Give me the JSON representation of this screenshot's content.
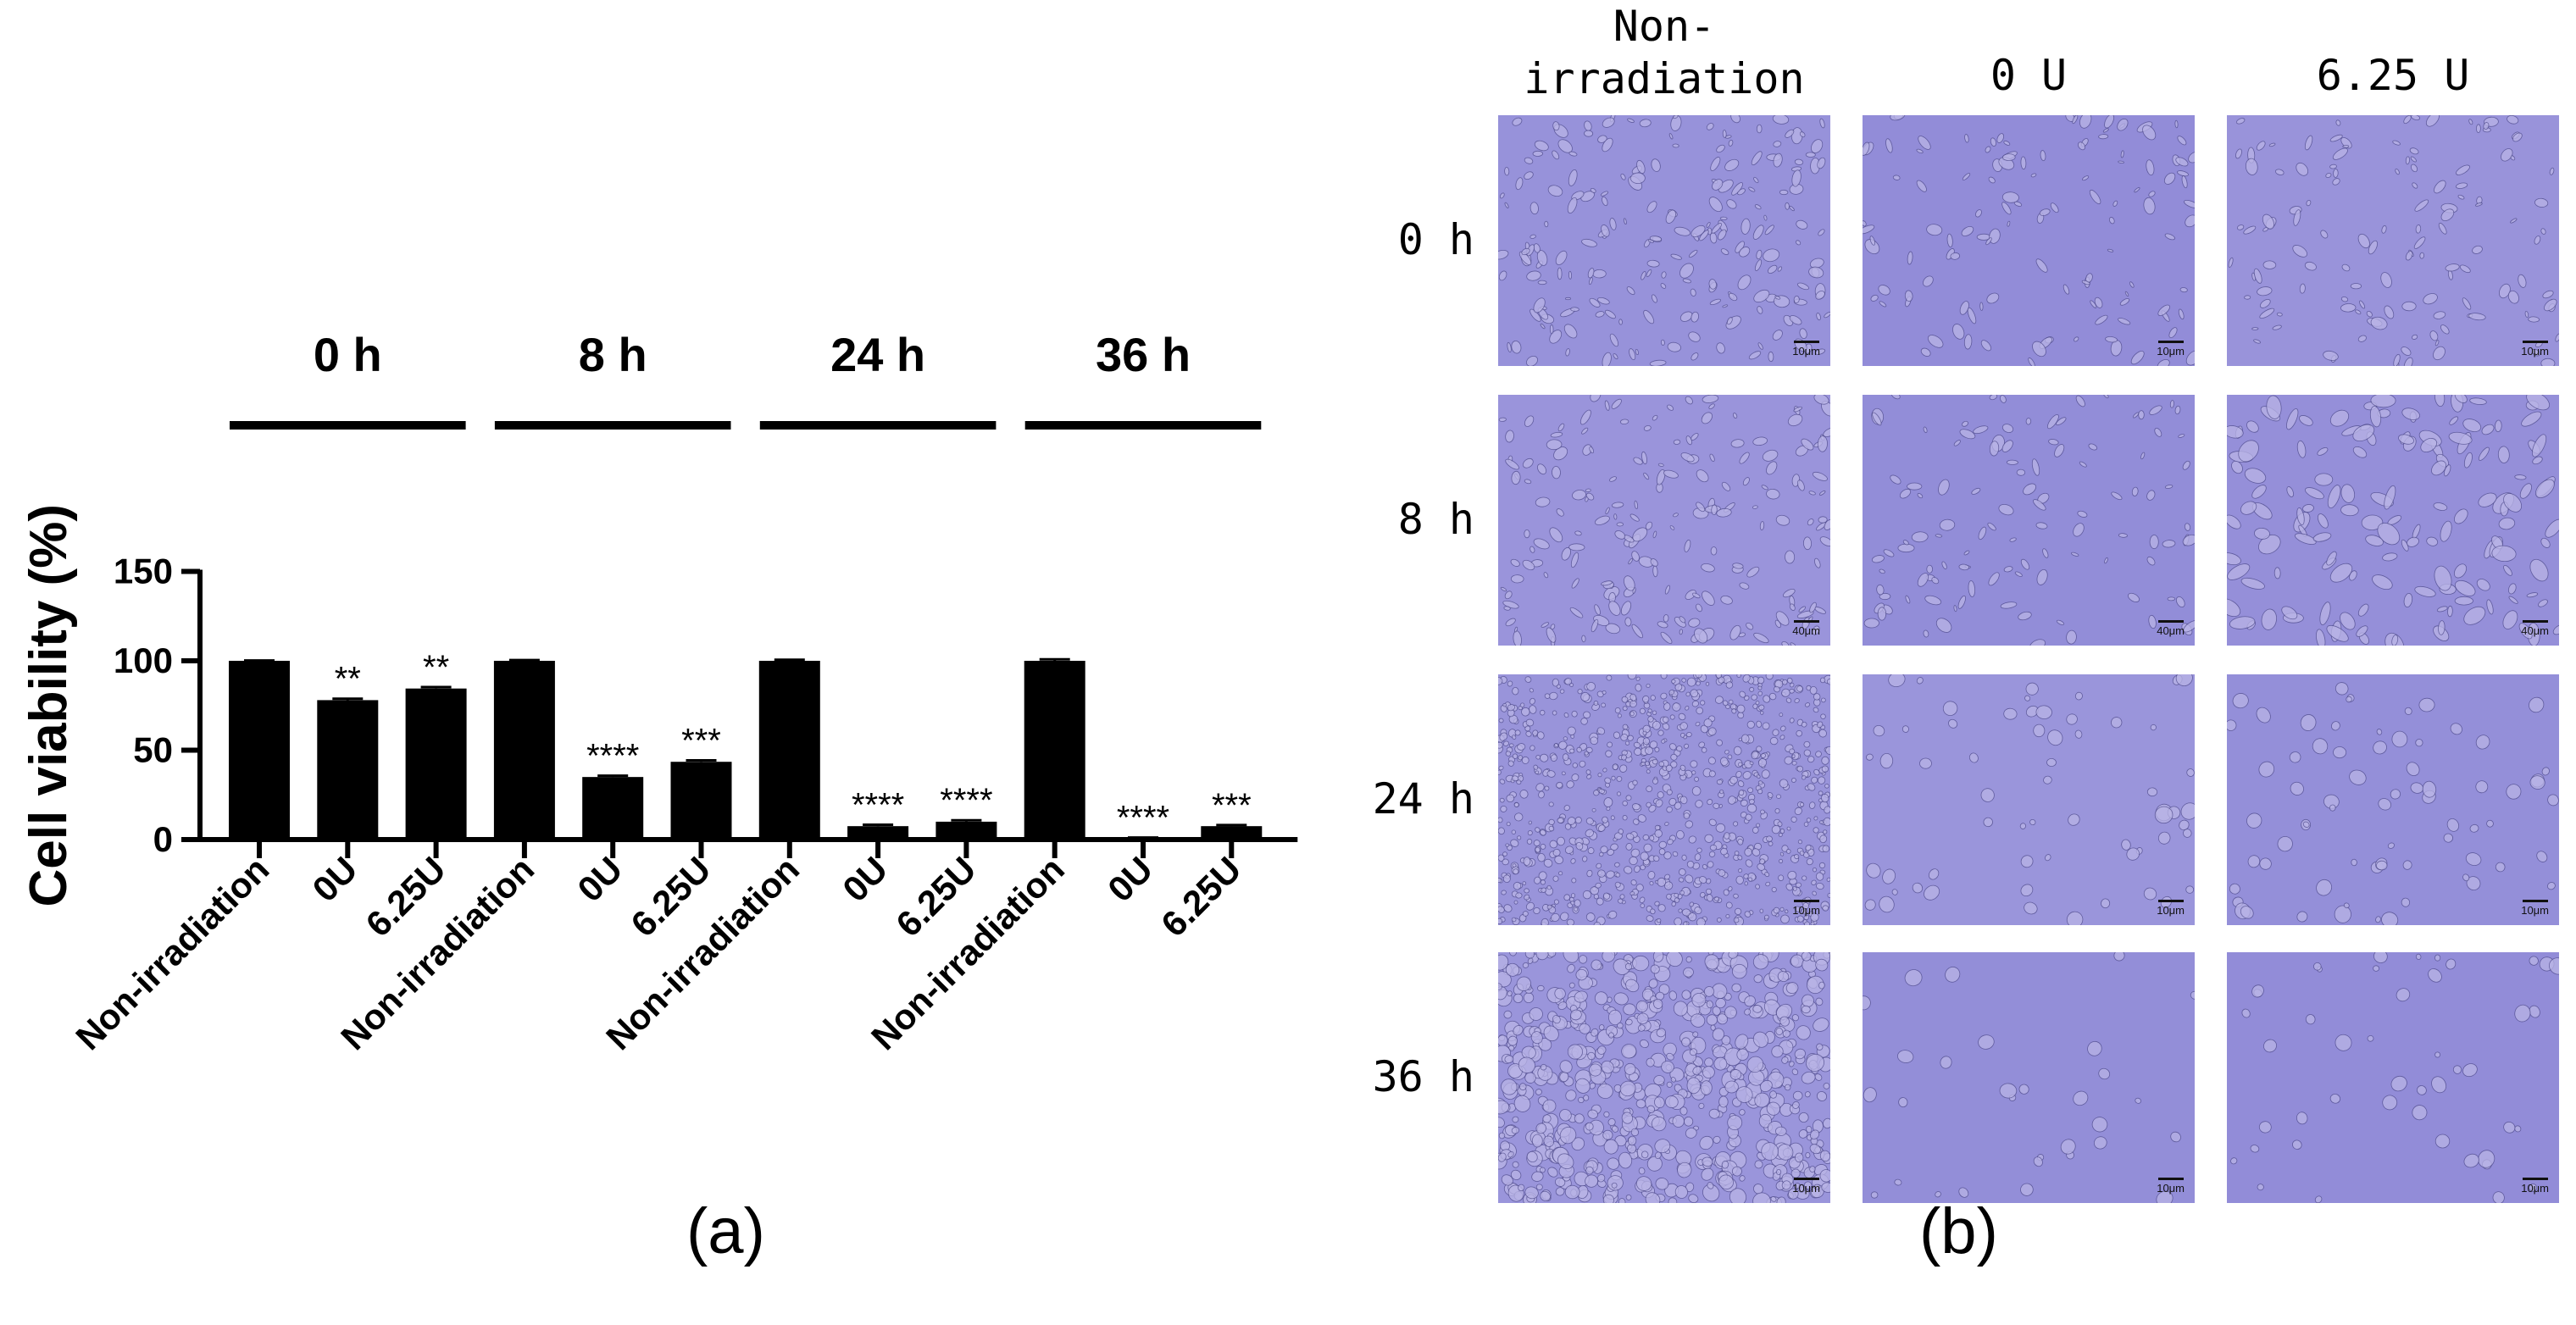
{
  "chart_data": {
    "type": "bar",
    "ylabel": "Cell viability (%)",
    "ylim": [
      0,
      150
    ],
    "yticks": [
      0,
      50,
      100,
      150
    ],
    "bar_color": "#000000",
    "groups": [
      {
        "title": "0 h",
        "bars": [
          {
            "label": "Non-irradiation",
            "value": 100,
            "error": 0.2,
            "sig": ""
          },
          {
            "label": "0U",
            "value": 78,
            "error": 0.8,
            "sig": "**"
          },
          {
            "label": "6.25U",
            "value": 84.5,
            "error": 0.8,
            "sig": "**"
          }
        ]
      },
      {
        "title": "8 h",
        "bars": [
          {
            "label": "Non-irradiation",
            "value": 100,
            "error": 0.4,
            "sig": ""
          },
          {
            "label": "0U",
            "value": 35,
            "error": 0.7,
            "sig": "****"
          },
          {
            "label": "6.25U",
            "value": 43.5,
            "error": 0.8,
            "sig": "***"
          }
        ]
      },
      {
        "title": "24 h",
        "bars": [
          {
            "label": "Non-irradiation",
            "value": 100,
            "error": 0.6,
            "sig": ""
          },
          {
            "label": "0U",
            "value": 7.5,
            "error": 0.8,
            "sig": "****"
          },
          {
            "label": "6.25U",
            "value": 10,
            "error": 0.8,
            "sig": "****"
          }
        ]
      },
      {
        "title": "36 h",
        "bars": [
          {
            "label": "Non-irradiation",
            "value": 100,
            "error": 0.8,
            "sig": ""
          },
          {
            "label": "0U",
            "value": 0.8,
            "error": 0.3,
            "sig": "****"
          },
          {
            "label": "6.25U",
            "value": 7.5,
            "error": 0.6,
            "sig": "***"
          }
        ]
      }
    ]
  },
  "panel_labels": {
    "a": "(a)",
    "b": "(b)"
  },
  "micrographs": {
    "column_headers": [
      "Non-\nirradiation",
      "0 U",
      "6.25 U"
    ],
    "row_headers": [
      "0 h",
      "8 h",
      "24 h",
      "36 h"
    ],
    "scale_bars": [
      "10μm",
      "40μm",
      "10μm",
      "10μm"
    ],
    "background_color": "#8c86d6"
  }
}
